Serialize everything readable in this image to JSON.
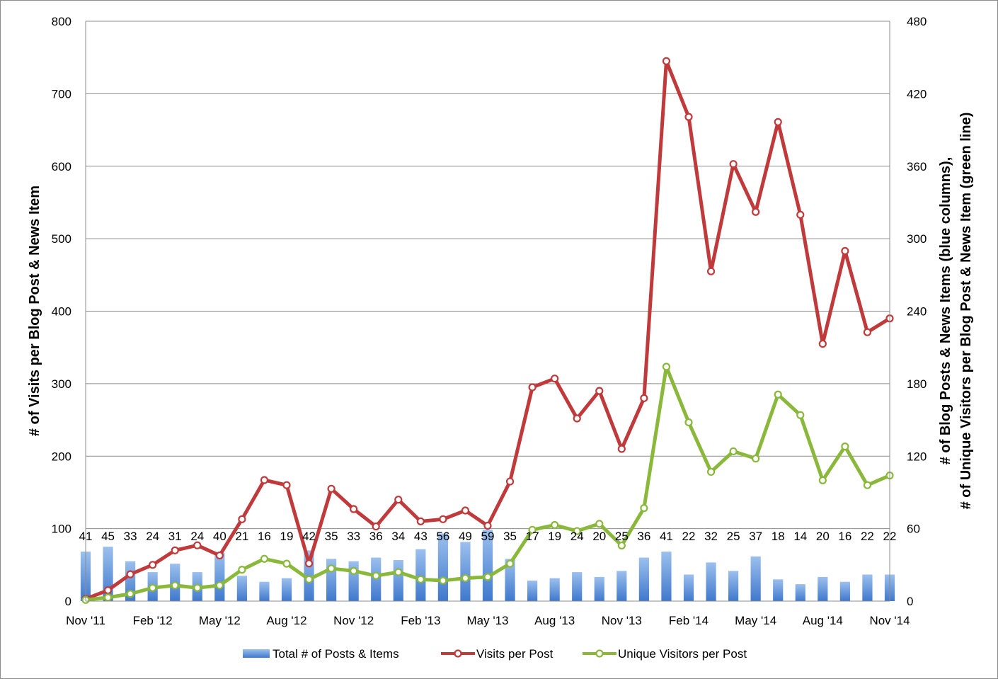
{
  "chart_data": {
    "type": "bar",
    "x_tick_labels": [
      "Nov '11",
      "Feb '12",
      "May '12",
      "Aug '12",
      "Nov '12",
      "Feb '13",
      "May '13",
      "Aug '13",
      "Nov '13",
      "Feb '14",
      "May '14",
      "Aug '14",
      "Nov '14"
    ],
    "categories": [
      "Nov '11",
      "Dec '11",
      "Jan '12",
      "Feb '12",
      "Mar '12",
      "Apr '12",
      "May '12",
      "Jun '12",
      "Jul '12",
      "Aug '12",
      "Sep '12",
      "Oct '12",
      "Nov '12",
      "Dec '12",
      "Jan '13",
      "Feb '13",
      "Mar '13",
      "Apr '13",
      "May '13",
      "Jun '13",
      "Jul '13",
      "Aug '13",
      "Sep '13",
      "Oct '13",
      "Nov '13",
      "Dec '13",
      "Jan '14",
      "Feb '14",
      "Mar '14",
      "Apr '14",
      "May '14",
      "Jun '14",
      "Jul '14",
      "Aug '14",
      "Sep '14",
      "Oct '14",
      "Nov '14"
    ],
    "ylabel_left": "# of Visits per Blog Post & News Item",
    "ylabel_right_line1": "# of Blog Posts & News Items  (blue columns),",
    "ylabel_right_line2": "# of Unique Visitors per Blog Post & News Item (green line)",
    "ylim_left": [
      0,
      800
    ],
    "yticks_left": [
      0,
      100,
      200,
      300,
      400,
      500,
      600,
      700,
      800
    ],
    "ylim_right": [
      0,
      480
    ],
    "yticks_right": [
      0,
      60,
      120,
      180,
      240,
      300,
      360,
      420,
      480
    ],
    "grid": true,
    "legend_position": "bottom",
    "series": [
      {
        "name": "Total # of Posts & Items",
        "type": "bar",
        "axis": "right",
        "color": "#5b8fd6",
        "values": [
          41,
          45,
          33,
          24,
          31,
          24,
          40,
          21,
          16,
          19,
          42,
          35,
          33,
          36,
          34,
          43,
          56,
          49,
          59,
          35,
          17,
          19,
          24,
          20,
          25,
          36,
          41,
          22,
          32,
          25,
          37,
          18,
          14,
          20,
          16,
          22,
          22
        ],
        "labels": [
          "41",
          "45",
          "33",
          "24",
          "31",
          "24",
          "40",
          "21",
          "16",
          "19",
          "42",
          "35",
          "33",
          "36",
          "34",
          "43",
          "56",
          "49",
          "59",
          "35",
          "17",
          "19",
          "24",
          "20",
          "25",
          "36",
          "41",
          "22",
          "32",
          "25",
          "37",
          "18",
          "14",
          "20",
          "16",
          "22",
          "22"
        ]
      },
      {
        "name": "Visits per Post",
        "type": "line",
        "axis": "left",
        "color": "#c0393b",
        "values": [
          3,
          15,
          37,
          50,
          70,
          77,
          63,
          113,
          167,
          160,
          52,
          155,
          127,
          103,
          140,
          110,
          113,
          125,
          104,
          165,
          295,
          307,
          252,
          290,
          210,
          280,
          745,
          668,
          455,
          603,
          537,
          661,
          533,
          355,
          483,
          371,
          390
        ]
      },
      {
        "name": "Unique Visitors per Post",
        "type": "line",
        "axis": "right",
        "color": "#8ab83b",
        "values": [
          1,
          3,
          6,
          11,
          13,
          11,
          13,
          26,
          35,
          31,
          18,
          27,
          25,
          21,
          24,
          18,
          17,
          19,
          20,
          31,
          59,
          63,
          58,
          64,
          46,
          77,
          194,
          148,
          107,
          124,
          118,
          171,
          154,
          100,
          128,
          96,
          104
        ]
      }
    ]
  }
}
